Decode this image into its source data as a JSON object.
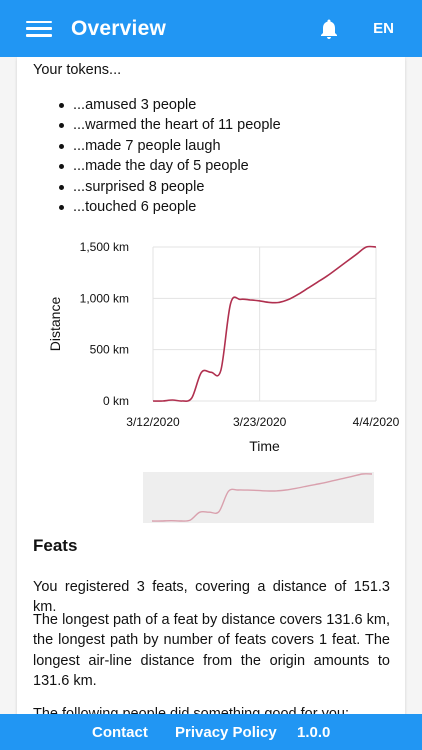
{
  "header": {
    "title": "Overview",
    "language": "EN"
  },
  "tokens": {
    "intro": "Your tokens...",
    "items": [
      "...amused 3 people",
      "...warmed the heart of 11 people",
      "...made 7 people laugh",
      "...made the day of 5 people",
      "...surprised 8 people",
      "...touched 6 people"
    ]
  },
  "chart_data": {
    "type": "line",
    "xlabel": "Time",
    "ylabel": "Distance",
    "x_tick_labels": [
      "3/12/2020",
      "3/23/2020",
      "4/4/2020"
    ],
    "y_tick_labels": [
      "0 km",
      "500 km",
      "1,000 km",
      "1,500 km"
    ],
    "ylim": [
      0,
      1500
    ],
    "xlim": [
      "2020-03-12",
      "2020-04-04"
    ],
    "grid": true,
    "line_color": "#b0304f",
    "series": [
      {
        "x": [
          "2020-03-12",
          "2020-03-13",
          "2020-03-14",
          "2020-03-15",
          "2020-03-16",
          "2020-03-17",
          "2020-03-18",
          "2020-03-19",
          "2020-03-20",
          "2020-03-21",
          "2020-03-22",
          "2020-03-23",
          "2020-03-24",
          "2020-03-25",
          "2020-03-26",
          "2020-03-27",
          "2020-03-28",
          "2020-03-29",
          "2020-03-30",
          "2020-03-31",
          "2020-04-01",
          "2020-04-02",
          "2020-04-03",
          "2020-04-04"
        ],
        "values": [
          0,
          0,
          10,
          0,
          30,
          280,
          280,
          300,
          950,
          990,
          985,
          975,
          960,
          960,
          990,
          1040,
          1100,
          1160,
          1220,
          1290,
          1360,
          1430,
          1500,
          1500
        ]
      }
    ]
  },
  "feats": {
    "title": "Feats",
    "summary": "You registered 3 feats, covering a distance of 151.3 km.",
    "details": "The longest path of a feat by distance covers 131.6 km, the longest path by number of feats covers 1 feat. The longest air-line distance from the origin amounts to 131.6 km.",
    "more": "The following people did something good for you:"
  },
  "footer": {
    "contact": "Contact",
    "privacy": "Privacy Policy",
    "version": "1.0.0"
  }
}
